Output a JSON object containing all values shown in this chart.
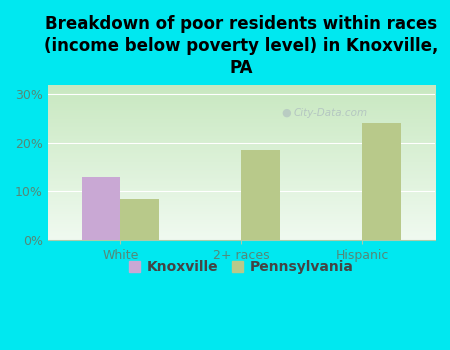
{
  "title": "Breakdown of poor residents within races\n(income below poverty level) in Knoxville,\nPA",
  "categories": [
    "White",
    "2+ races",
    "Hispanic"
  ],
  "knoxville_values": [
    13.0,
    0,
    0
  ],
  "pennsylvania_values": [
    8.5,
    18.5,
    24.0
  ],
  "knoxville_color": "#c9a8d4",
  "pennsylvania_color": "#b8c98a",
  "background_outer": "#00e8f0",
  "background_inner_top": "#f5fff5",
  "background_inner_bottom": "#d4ecd4",
  "ylim": [
    0,
    32
  ],
  "yticks": [
    0,
    10,
    20,
    30
  ],
  "ytick_labels": [
    "0%",
    "10%",
    "20%",
    "30%"
  ],
  "bar_width": 0.32,
  "legend_labels": [
    "Knoxville",
    "Pennsylvania"
  ],
  "grid_color": "#e0ece0",
  "title_fontsize": 12,
  "axis_label_fontsize": 9,
  "legend_fontsize": 10,
  "tick_color": "#558877",
  "watermark_text": "City-Data.com"
}
